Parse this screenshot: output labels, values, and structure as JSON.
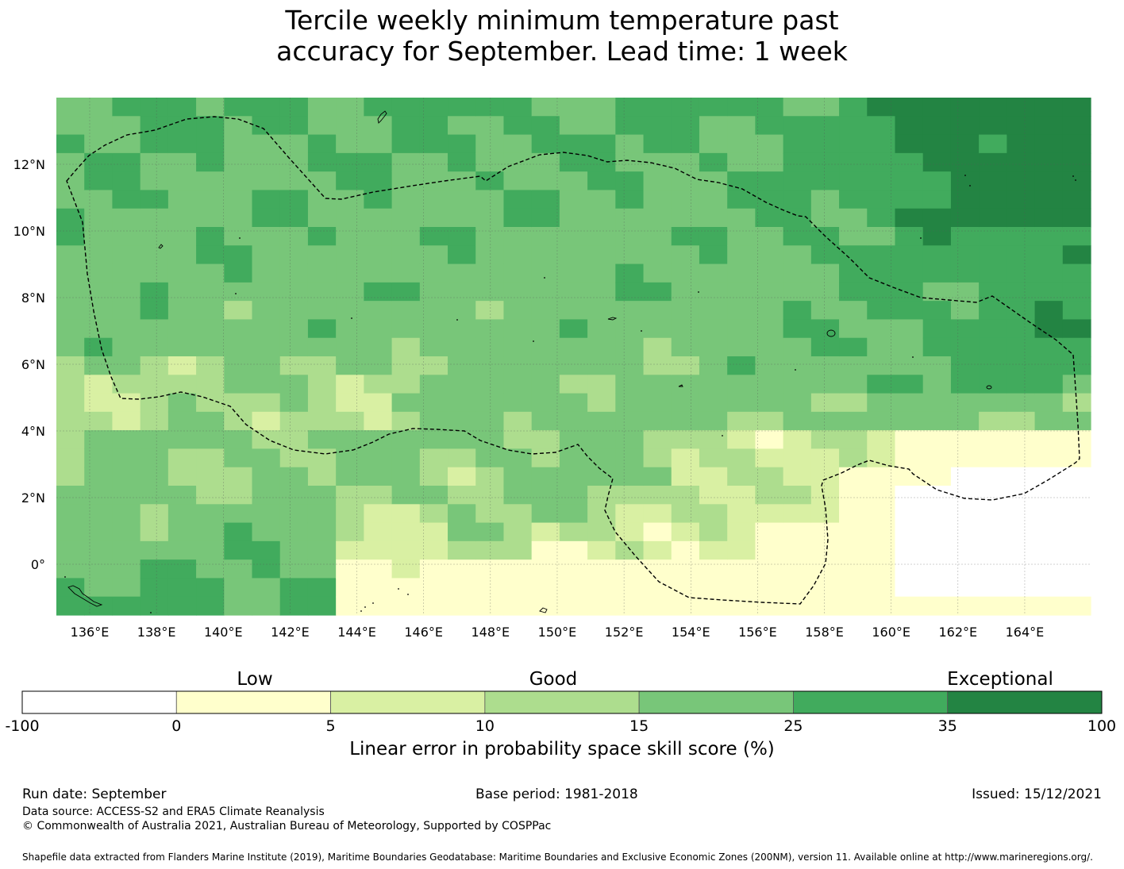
{
  "title": {
    "line1": "Tercile weekly minimum temperature past",
    "line2": "accuracy for September. Lead time: 1 week"
  },
  "map": {
    "lon_range": [
      135,
      166
    ],
    "lat_range": [
      -1.5,
      14
    ],
    "lon_ticks": [
      "136°E",
      "138°E",
      "140°E",
      "142°E",
      "144°E",
      "146°E",
      "148°E",
      "150°E",
      "152°E",
      "154°E",
      "156°E",
      "158°E",
      "160°E",
      "162°E",
      "164°E"
    ],
    "lat_ticks": [
      "12°N",
      "10°N",
      "8°N",
      "6°N",
      "4°N",
      "2°N",
      "0°"
    ],
    "grid": true
  },
  "colorbar": {
    "categories": [
      "Low",
      "Good",
      "Exceptional"
    ],
    "tick_labels": [
      "-100",
      "0",
      "5",
      "10",
      "15",
      "25",
      "35",
      "100"
    ],
    "colors": [
      "#ffffff",
      "#ffffcc",
      "#d9f0a3",
      "#addd8e",
      "#78c679",
      "#41ab5d",
      "#238443"
    ],
    "label": "Linear error in probability space skill score (%)"
  },
  "footer": {
    "run_date": "Run date: September",
    "base_period": "Base period: 1981-2018",
    "issued": "Issued: 15/12/2021",
    "data_source": "Data source: ACCESS-S2 and ERA5 Climate Reanalysis",
    "copyright": "© Commonwealth of Australia 2021, Australian Bureau of Meteorology, Supported by COSPPac",
    "shapefile": "Shapefile data extracted from Flanders Marine Institute (2019), Maritime Boundaries Geodatabase: Maritime Boundaries and Exclusive Economic Zones (200NM), version 11. Available online at http://www.marineregions.org/."
  }
}
